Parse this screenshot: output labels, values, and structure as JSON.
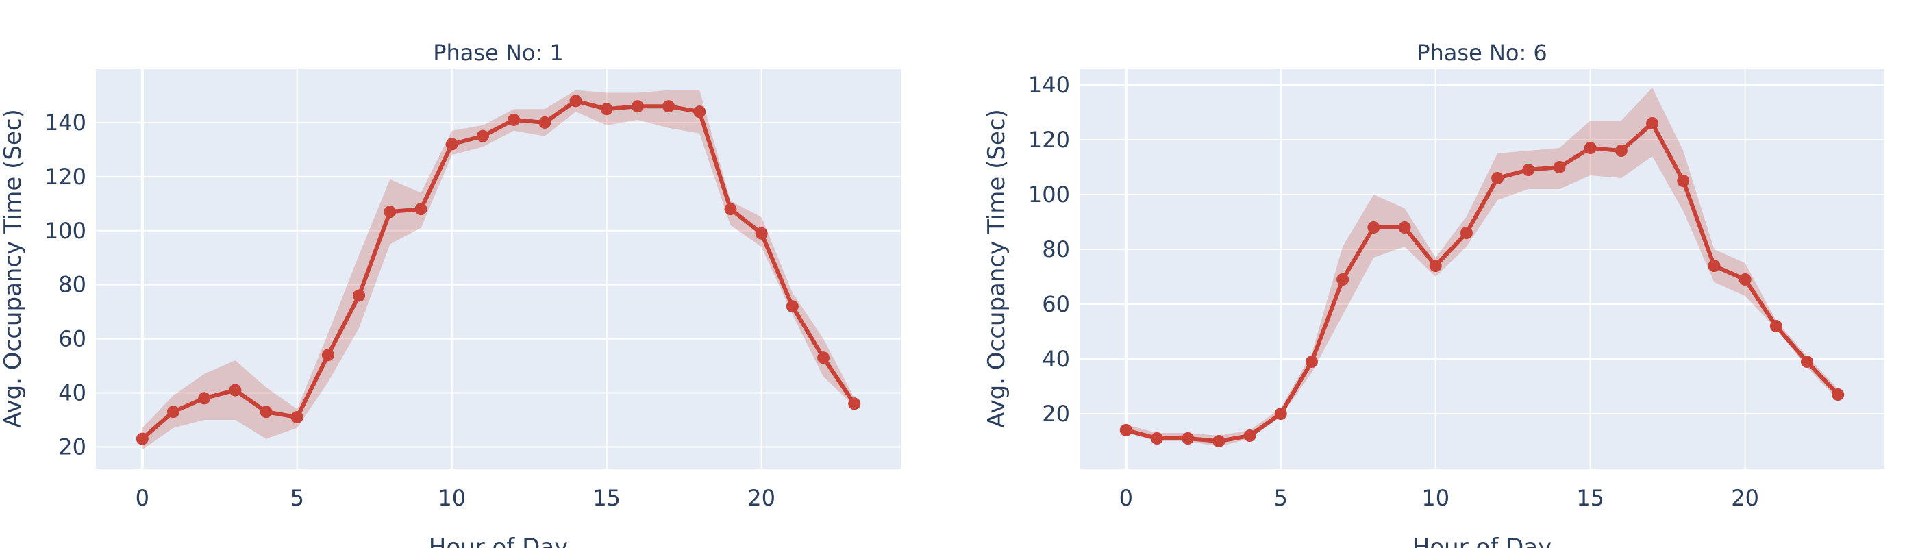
{
  "colors": {
    "line": "#c84238",
    "band": "#c84238",
    "band_opacity": 0.25,
    "plot_bg": "#e5ecf6",
    "text": "#2a3f5f"
  },
  "chart_data": [
    {
      "type": "line",
      "title": "Phase No: 1",
      "xlabel": "Hour of Day",
      "ylabel": "Avg. Occupancy Time (Sec)",
      "xlim": [
        -1.5,
        24.5
      ],
      "ylim": [
        12,
        160
      ],
      "xticks": [
        0,
        5,
        10,
        15,
        20
      ],
      "yticks": [
        20,
        40,
        60,
        80,
        100,
        120,
        140
      ],
      "grid": true,
      "legend": "none",
      "x": [
        0,
        1,
        2,
        3,
        4,
        5,
        6,
        7,
        8,
        9,
        10,
        11,
        12,
        13,
        14,
        15,
        16,
        17,
        18,
        19,
        20,
        21,
        22,
        23
      ],
      "y": [
        23,
        33,
        38,
        41,
        33,
        31,
        54,
        76,
        107,
        108,
        132,
        135,
        141,
        140,
        148,
        145,
        146,
        146,
        144,
        108,
        99,
        72,
        53,
        36
      ],
      "y_lower": [
        19,
        27,
        30,
        30,
        23,
        27,
        44,
        64,
        95,
        101,
        128,
        131,
        137,
        135,
        144,
        139,
        141,
        138,
        136,
        102,
        94,
        69,
        46,
        35
      ],
      "y_upper": [
        27,
        39,
        47,
        52,
        42,
        34,
        62,
        91,
        119,
        114,
        137,
        139,
        145,
        145,
        152,
        151,
        151,
        152,
        152,
        111,
        105,
        77,
        60,
        38
      ]
    },
    {
      "type": "line",
      "title": "Phase No: 6",
      "xlabel": "Hour of Day",
      "ylabel": "Avg. Occupancy Time (Sec)",
      "xlim": [
        -1.5,
        24.5
      ],
      "ylim": [
        0,
        146
      ],
      "xticks": [
        0,
        5,
        10,
        15,
        20
      ],
      "yticks": [
        20,
        40,
        60,
        80,
        100,
        120,
        140
      ],
      "grid": true,
      "legend": "none",
      "x": [
        0,
        1,
        2,
        3,
        4,
        5,
        6,
        7,
        8,
        9,
        10,
        11,
        12,
        13,
        14,
        15,
        16,
        17,
        18,
        19,
        20,
        21,
        22,
        23
      ],
      "y": [
        14,
        11,
        11,
        10,
        12,
        20,
        39,
        69,
        88,
        88,
        74,
        86,
        106,
        109,
        110,
        117,
        116,
        126,
        105,
        74,
        69,
        52,
        39,
        27
      ],
      "y_lower": [
        13,
        10,
        10,
        8,
        11,
        19,
        35,
        56,
        77,
        81,
        70,
        81,
        98,
        102,
        102,
        107,
        106,
        114,
        94,
        68,
        63,
        51,
        37,
        25
      ],
      "y_upper": [
        16,
        13,
        13,
        12,
        14,
        22,
        42,
        81,
        100,
        95,
        77,
        92,
        115,
        116,
        117,
        127,
        127,
        139,
        116,
        80,
        75,
        54,
        41,
        29
      ]
    }
  ]
}
